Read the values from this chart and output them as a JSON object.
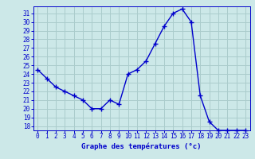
{
  "hours": [
    0,
    1,
    2,
    3,
    4,
    5,
    6,
    7,
    8,
    9,
    10,
    11,
    12,
    13,
    14,
    15,
    16,
    17,
    18,
    19,
    20,
    21,
    22,
    23
  ],
  "temperatures": [
    24.5,
    23.5,
    22.5,
    22.0,
    21.5,
    21.0,
    20.0,
    20.0,
    21.0,
    20.5,
    24.0,
    24.5,
    25.5,
    27.5,
    29.5,
    31.0,
    31.5,
    30.0,
    21.5,
    18.5,
    17.5,
    17.5,
    17.5,
    17.5
  ],
  "line_color": "#0000cc",
  "marker": "+",
  "marker_size": 4,
  "bg_color": "#cce8e8",
  "grid_color": "#aacccc",
  "xlabel": "Graphe des températures (°c)",
  "xlabel_color": "#0000cc",
  "tick_color": "#0000cc",
  "spine_color": "#0000cc",
  "ylim_min": 17.5,
  "ylim_max": 31.8,
  "xlim_min": -0.5,
  "xlim_max": 23.5,
  "yticks": [
    18,
    19,
    20,
    21,
    22,
    23,
    24,
    25,
    26,
    27,
    28,
    29,
    30,
    31
  ],
  "xticks": [
    0,
    1,
    2,
    3,
    4,
    5,
    6,
    7,
    8,
    9,
    10,
    11,
    12,
    13,
    14,
    15,
    16,
    17,
    18,
    19,
    20,
    21,
    22,
    23
  ],
  "label_fontsize": 6.5,
  "tick_fontsize": 5.5,
  "linewidth": 1.0,
  "markeredgewidth": 1.0
}
